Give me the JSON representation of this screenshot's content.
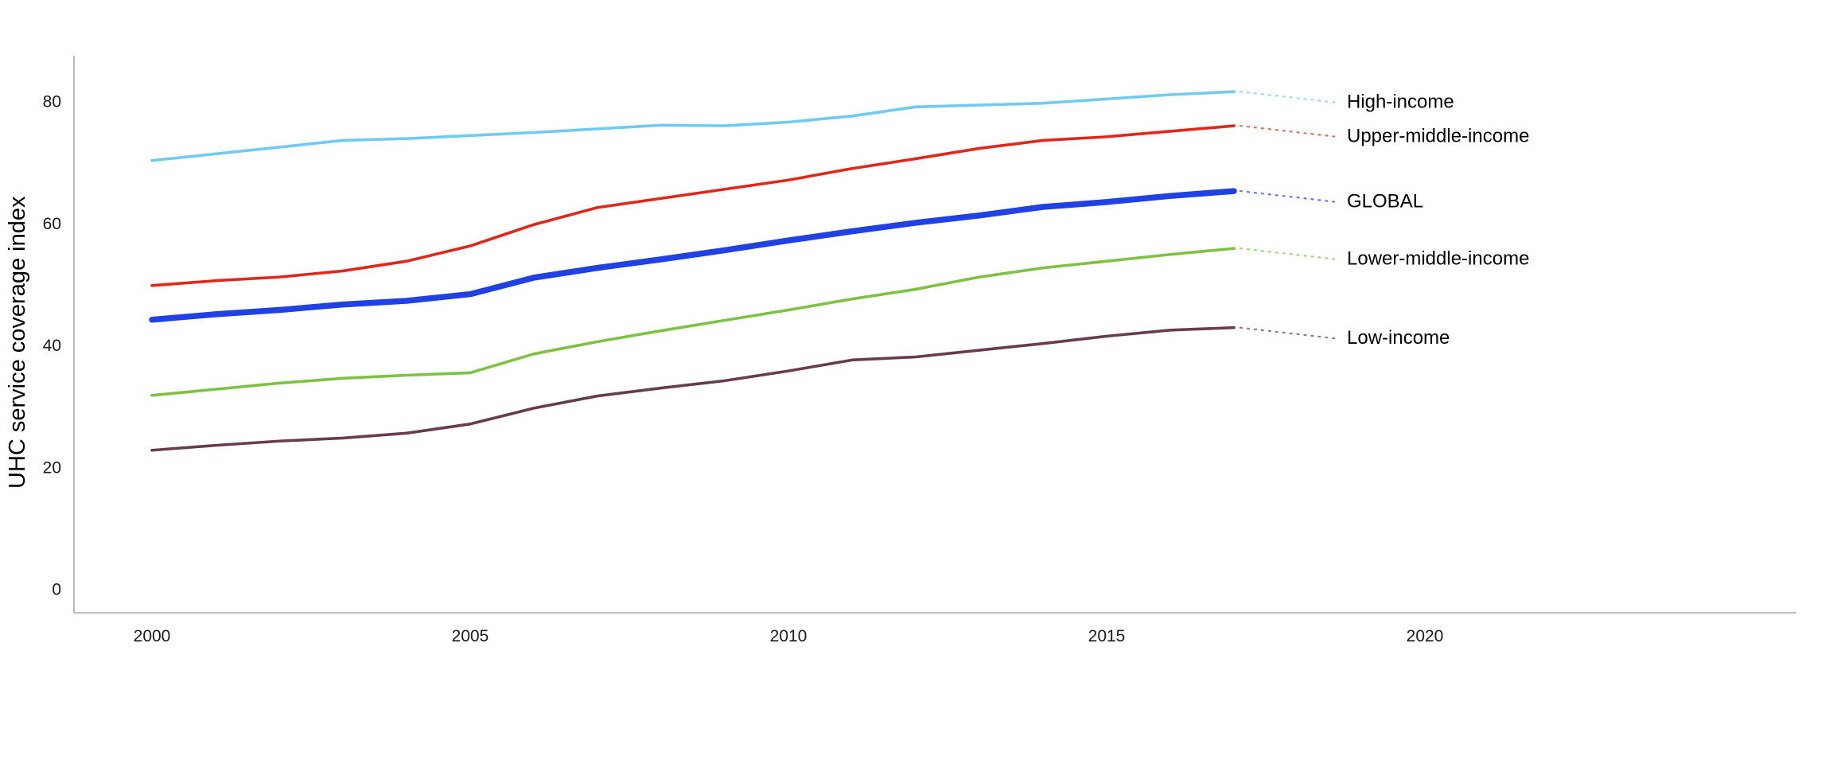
{
  "page": {
    "background": "#ffffff"
  },
  "chart_data": {
    "type": "line",
    "title": "",
    "xlabel": "",
    "ylabel": "UHC service coverage index",
    "axis_color": "#bdbdbd",
    "tick_label_color": "#1a1a1a",
    "series_label_color": "#000000",
    "grid": false,
    "legend_position": "right-end-labels",
    "xlim": [
      1998.8,
      2025.8
    ],
    "ylim": [
      0,
      87
    ],
    "xticks": [
      2000,
      2005,
      2010,
      2015,
      2020
    ],
    "yticks": [
      0,
      20,
      40,
      60,
      80
    ],
    "x": [
      2000,
      2001,
      2002,
      2003,
      2004,
      2005,
      2006,
      2007,
      2008,
      2009,
      2010,
      2011,
      2012,
      2013,
      2014,
      2015,
      2016,
      2017
    ],
    "series": [
      {
        "name": "High-income",
        "color": "#70cbf4",
        "stroke_width": 3.6,
        "values": [
          70.5,
          71.6,
          72.7,
          73.8,
          74.1,
          74.6,
          75.1,
          75.7,
          76.3,
          76.2,
          76.8,
          77.8,
          79.3,
          79.6,
          79.9,
          80.6,
          81.3,
          81.8
        ]
      },
      {
        "name": "Upper-middle-income",
        "color": "#e3261a",
        "stroke_width": 3.6,
        "values": [
          50.0,
          50.8,
          51.4,
          52.4,
          54.0,
          56.5,
          60.0,
          62.8,
          64.3,
          65.8,
          67.3,
          69.2,
          70.8,
          72.5,
          73.8,
          74.4,
          75.3,
          76.2
        ]
      },
      {
        "name": "GLOBAL",
        "color": "#2041e3",
        "stroke_width": 7.5,
        "values": [
          44.4,
          45.3,
          46.0,
          46.9,
          47.5,
          48.6,
          51.3,
          52.9,
          54.3,
          55.8,
          57.4,
          58.9,
          60.3,
          61.5,
          62.9,
          63.7,
          64.7,
          65.5
        ]
      },
      {
        "name": "Lower-middle-income",
        "color": "#7dc242",
        "stroke_width": 3.6,
        "values": [
          32.0,
          33.0,
          34.0,
          34.8,
          35.3,
          35.7,
          38.8,
          40.8,
          42.6,
          44.3,
          46.0,
          47.8,
          49.4,
          51.4,
          52.9,
          54.0,
          55.1,
          56.1
        ]
      },
      {
        "name": "Low-income",
        "color": "#693c4d",
        "stroke_width": 3.6,
        "values": [
          23.0,
          23.8,
          24.5,
          25.0,
          25.8,
          27.3,
          29.9,
          31.9,
          33.2,
          34.4,
          36.0,
          37.8,
          38.3,
          39.4,
          40.5,
          41.7,
          42.7,
          43.1
        ]
      }
    ]
  }
}
